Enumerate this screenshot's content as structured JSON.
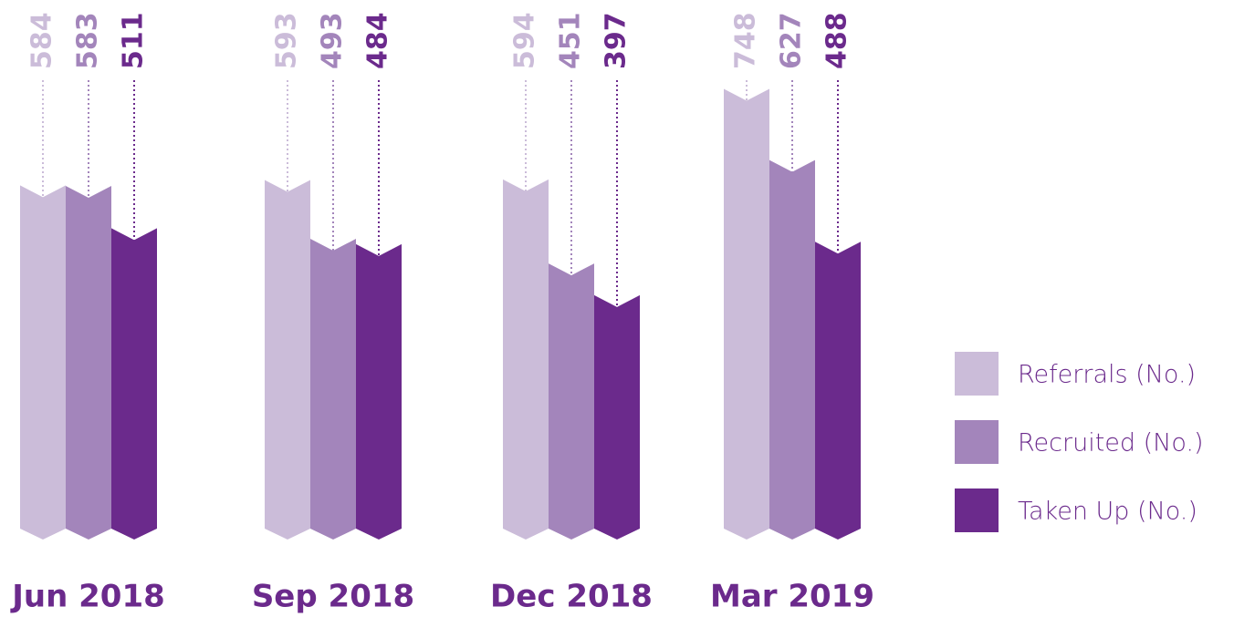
{
  "chart_data": {
    "type": "bar",
    "categories": [
      "Jun 2018",
      "Sep 2018",
      "Dec 2018",
      "Mar 2019"
    ],
    "series": [
      {
        "name": "Referrals (No.)",
        "color": "#cbbcd9",
        "values": [
          584,
          593,
          594,
          748
        ]
      },
      {
        "name": "Recruited (No.)",
        "color": "#a385bb",
        "values": [
          583,
          493,
          451,
          627
        ]
      },
      {
        "name": "Taken Up (No.)",
        "color": "#6b2a8c",
        "values": [
          511,
          484,
          397,
          488
        ]
      }
    ],
    "legend": "right"
  }
}
